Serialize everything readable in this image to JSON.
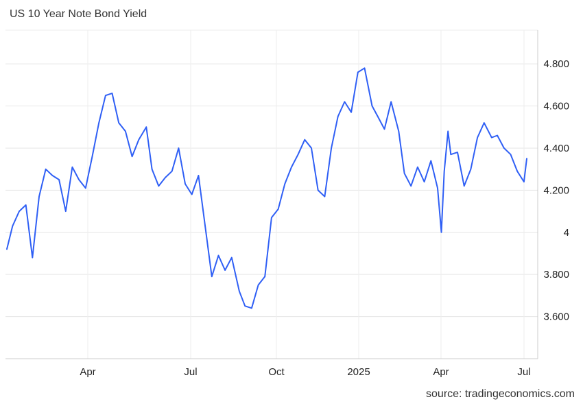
{
  "chart_data": {
    "type": "line",
    "title": "US 10 Year Note Bond Yield",
    "source": "source: tradingeconomics.com",
    "xlabel": "",
    "ylabel": "",
    "ylim": [
      3.4,
      4.96
    ],
    "y_ticks": [
      {
        "value": 3.6,
        "label": "3.600"
      },
      {
        "value": 3.8,
        "label": "3.800"
      },
      {
        "value": 4.0,
        "label": "4"
      },
      {
        "value": 4.2,
        "label": "4.200"
      },
      {
        "value": 4.4,
        "label": "4.400"
      },
      {
        "value": 4.6,
        "label": "4.600"
      },
      {
        "value": 4.8,
        "label": "4.800"
      }
    ],
    "x_ticks": [
      "Apr",
      "Jul",
      "Oct",
      "2025",
      "Apr",
      "Jul"
    ],
    "grid": true,
    "series": [
      {
        "color": "#2f5ff5",
        "x": [
          "2024-01-02",
          "2024-01-08",
          "2024-01-15",
          "2024-01-22",
          "2024-01-29",
          "2024-02-05",
          "2024-02-12",
          "2024-02-19",
          "2024-02-26",
          "2024-03-04",
          "2024-03-11",
          "2024-03-18",
          "2024-03-25",
          "2024-04-01",
          "2024-04-08",
          "2024-04-15",
          "2024-04-22",
          "2024-04-29",
          "2024-05-06",
          "2024-05-13",
          "2024-05-20",
          "2024-05-28",
          "2024-06-03",
          "2024-06-10",
          "2024-06-17",
          "2024-06-24",
          "2024-07-01",
          "2024-07-08",
          "2024-07-15",
          "2024-07-22",
          "2024-07-29",
          "2024-08-05",
          "2024-08-12",
          "2024-08-19",
          "2024-08-26",
          "2024-09-03",
          "2024-09-09",
          "2024-09-16",
          "2024-09-23",
          "2024-09-30",
          "2024-10-07",
          "2024-10-14",
          "2024-10-21",
          "2024-10-28",
          "2024-11-04",
          "2024-11-11",
          "2024-11-18",
          "2024-11-25",
          "2024-12-02",
          "2024-12-09",
          "2024-12-16",
          "2024-12-23",
          "2024-12-30",
          "2025-01-06",
          "2025-01-13",
          "2025-01-21",
          "2025-01-27",
          "2025-02-03",
          "2025-02-10",
          "2025-02-18",
          "2025-02-24",
          "2025-03-03",
          "2025-03-10",
          "2025-03-17",
          "2025-03-24",
          "2025-03-31",
          "2025-04-04",
          "2025-04-07",
          "2025-04-11",
          "2025-04-14",
          "2025-04-21",
          "2025-04-28",
          "2025-05-05",
          "2025-05-12",
          "2025-05-19",
          "2025-05-27",
          "2025-06-02",
          "2025-06-09",
          "2025-06-16",
          "2025-06-23",
          "2025-06-30",
          "2025-07-03"
        ],
        "values": [
          3.92,
          4.03,
          4.1,
          4.13,
          3.88,
          4.17,
          4.3,
          4.27,
          4.25,
          4.1,
          4.31,
          4.25,
          4.21,
          4.36,
          4.52,
          4.65,
          4.66,
          4.52,
          4.48,
          4.36,
          4.44,
          4.5,
          4.3,
          4.22,
          4.26,
          4.29,
          4.4,
          4.23,
          4.18,
          4.27,
          4.03,
          3.79,
          3.89,
          3.82,
          3.88,
          3.72,
          3.65,
          3.64,
          3.75,
          3.79,
          4.07,
          4.11,
          4.23,
          4.31,
          4.37,
          4.44,
          4.4,
          4.2,
          4.17,
          4.4,
          4.55,
          4.62,
          4.57,
          4.76,
          4.78,
          4.6,
          4.55,
          4.49,
          4.62,
          4.48,
          4.28,
          4.22,
          4.31,
          4.24,
          4.34,
          4.21,
          4.0,
          4.29,
          4.48,
          4.37,
          4.38,
          4.22,
          4.3,
          4.45,
          4.52,
          4.45,
          4.46,
          4.4,
          4.37,
          4.29,
          4.24,
          4.35
        ]
      }
    ]
  }
}
